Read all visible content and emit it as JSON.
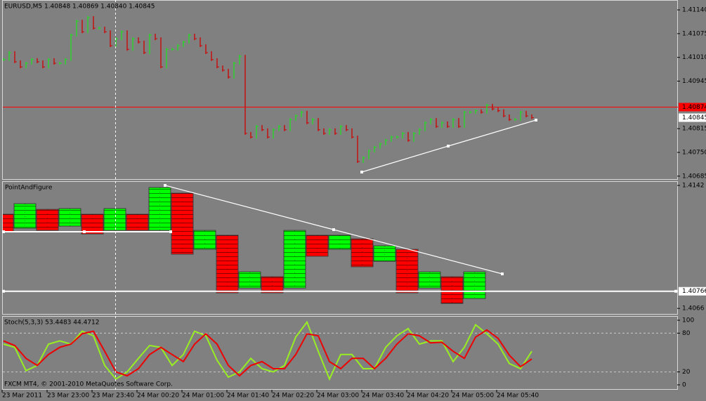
{
  "window": {
    "symbol_header": "EURUSD,M5  1.40848 1.40869 1.40840 1.40845",
    "copyright": "FXCM MT4, © 2001-2010 MetaQuotes Software Corp."
  },
  "price_panel": {
    "type": "bar",
    "ylim": [
      1.40677,
      1.41167
    ],
    "yticks": [
      {
        "value": 1.4114,
        "label": "1.41140"
      },
      1.41075,
      {
        "value": 1.4101,
        "label": "1.41010"
      },
      1.40945,
      1.40815,
      {
        "value": 1.4075,
        "label": "1.40750"
      },
      1.40685
    ],
    "level_line": 1.40874,
    "level_color": "#ff0000",
    "last_price": 1.40845,
    "up_color": "#22dd22",
    "down_color": "#d00000",
    "closes": [
      1.41004,
      1.41023,
      1.40998,
      1.40984,
      1.40994,
      1.41004,
      1.40998,
      1.40984,
      1.41004,
      1.40994,
      1.40994,
      1.41004,
      1.41071,
      1.41109,
      1.4108,
      1.41119,
      1.4109,
      1.4109,
      1.4108,
      1.41042,
      1.41061,
      1.4108,
      1.41032,
      1.41061,
      1.41052,
      1.41023,
      1.41071,
      1.41061,
      1.40984,
      1.41032,
      1.41032,
      1.41042,
      1.41052,
      1.41071,
      1.41061,
      1.41042,
      1.41023,
      1.41004,
      1.40984,
      1.40975,
      1.40956,
      1.40994,
      1.41013,
      1.40802,
      1.40792,
      1.40821,
      1.40812,
      1.40792,
      1.40812,
      1.40821,
      1.40812,
      1.4084,
      1.4085,
      1.4086,
      1.40831,
      1.4084,
      1.40812,
      1.40802,
      1.40812,
      1.40802,
      1.40821,
      1.40812,
      1.40792,
      1.40725,
      1.40735,
      1.40754,
      1.40764,
      1.40773,
      1.40783,
      1.40792,
      1.40792,
      1.40802,
      1.40783,
      1.40802,
      1.40812,
      1.40831,
      1.4084,
      1.40821,
      1.40831,
      1.40821,
      1.4084,
      1.40821,
      1.4086,
      1.4086,
      1.40864,
      1.4086,
      1.40879,
      1.40869,
      1.40864,
      1.4085,
      1.4084,
      1.4084,
      1.4086,
      1.4085,
      1.40845
    ]
  },
  "pnf_panel": {
    "type": "pnf",
    "title": "PointAndFigure",
    "ylim": [
      1.40626,
      1.41446
    ],
    "yticks": [
      1.4142,
      1.4066
    ],
    "level_line": 1.40766,
    "up_color": "#00ff00",
    "down_color": "#ff0000",
    "columns": [
      {
        "dir": "down",
        "high": 1.41242,
        "low": 1.41134
      },
      {
        "dir": "up",
        "high": 1.41307,
        "low": 1.41155
      },
      {
        "dir": "down",
        "high": 1.41272,
        "low": 1.41142
      },
      {
        "dir": "up",
        "high": 1.41277,
        "low": 1.41168
      },
      {
        "dir": "down",
        "high": 1.41242,
        "low": 1.4112
      },
      {
        "dir": "up",
        "high": 1.41277,
        "low": 1.41142
      },
      {
        "dir": "down",
        "high": 1.41242,
        "low": 1.41142
      },
      {
        "dir": "up",
        "high": 1.41407,
        "low": 1.41142
      },
      {
        "dir": "down",
        "high": 1.41372,
        "low": 1.40995
      },
      {
        "dir": "up",
        "high": 1.41142,
        "low": 1.41025
      },
      {
        "dir": "down",
        "high": 1.41112,
        "low": 1.40756
      },
      {
        "dir": "up",
        "high": 1.40886,
        "low": 1.40786
      },
      {
        "dir": "down",
        "high": 1.40856,
        "low": 1.40756
      },
      {
        "dir": "up",
        "high": 1.41142,
        "low": 1.40786
      },
      {
        "dir": "down",
        "high": 1.41112,
        "low": 1.40982
      },
      {
        "dir": "up",
        "high": 1.41112,
        "low": 1.41025
      },
      {
        "dir": "down",
        "high": 1.4109,
        "low": 1.40917
      },
      {
        "dir": "up",
        "high": 1.41047,
        "low": 1.40951
      },
      {
        "dir": "down",
        "high": 1.41025,
        "low": 1.40756
      },
      {
        "dir": "up",
        "high": 1.40886,
        "low": 1.40786
      },
      {
        "dir": "down",
        "high": 1.40856,
        "low": 1.40691
      },
      {
        "dir": "up",
        "high": 1.40886,
        "low": 1.40721
      }
    ]
  },
  "stoch_panel": {
    "type": "line",
    "title": "Stoch(5,3,3) 53.4483 44.4712",
    "ylim": [
      -7.6,
      106.5
    ],
    "yticks": [
      100,
      80,
      20,
      0
    ],
    "levels": [
      80,
      20
    ],
    "series": [
      {
        "color": "#99ee22",
        "values": [
          63,
          58,
          22,
          30,
          63,
          68,
          63,
          83,
          76,
          30,
          9,
          20,
          41,
          61,
          58,
          30,
          47,
          83,
          76,
          38,
          12,
          20,
          41,
          25,
          20,
          30,
          74,
          97,
          52,
          9,
          47,
          47,
          25,
          25,
          58,
          76,
          87,
          63,
          68,
          68,
          36,
          58,
          93,
          79,
          63,
          33,
          25,
          52
        ]
      },
      {
        "color": "#ee0000",
        "values": [
          68,
          61,
          41,
          30,
          47,
          58,
          63,
          79,
          83,
          52,
          20,
          14,
          25,
          47,
          58,
          47,
          36,
          63,
          79,
          63,
          30,
          14,
          30,
          36,
          25,
          25,
          47,
          79,
          76,
          36,
          25,
          41,
          41,
          25,
          41,
          63,
          79,
          76,
          65,
          66,
          52,
          41,
          74,
          85,
          72,
          46,
          28,
          40
        ]
      }
    ]
  },
  "time_axis": [
    "23 Mar 2011",
    "23 Mar 23:00",
    "23 Mar 23:40",
    "24 Mar 00:20",
    "24 Mar 01:00",
    "24 Mar 01:40",
    "24 Mar 02:20",
    "24 Mar 03:00",
    "24 Mar 03:40",
    "24 Mar 04:20",
    "24 Mar 05:00",
    "24 Mar 05:40"
  ]
}
